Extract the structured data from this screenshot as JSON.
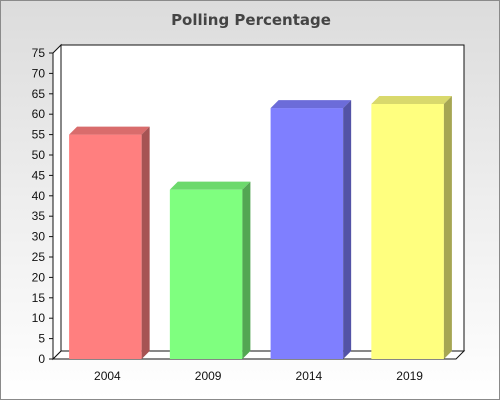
{
  "chart_data": {
    "type": "bar",
    "title": "Polling Percentage",
    "xlabel": "",
    "ylabel": "",
    "categories": [
      "2004",
      "2009",
      "2014",
      "2019"
    ],
    "values": [
      55,
      41.5,
      61.5,
      62.5
    ],
    "ylim": [
      0,
      75
    ],
    "ytick_step": 5,
    "grid": false,
    "legend": "none",
    "bar_colors": [
      "#ff7f7f",
      "#7fff7f",
      "#7f7fff",
      "#ffff7f"
    ]
  }
}
